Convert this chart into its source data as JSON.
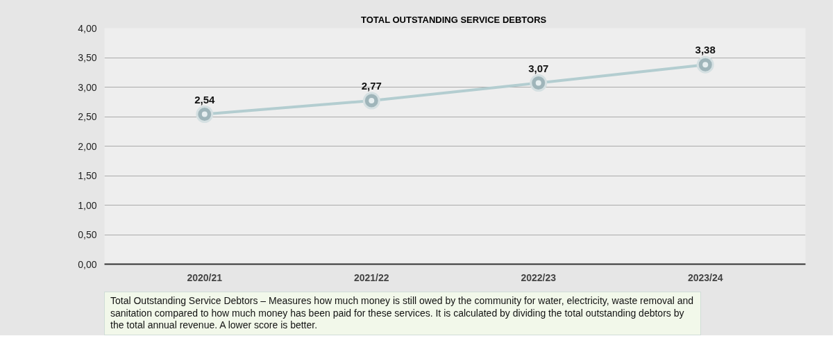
{
  "chart_data": {
    "type": "line",
    "title": "TOTAL OUTSTANDING  SERVICE DEBTORS",
    "categories": [
      "2020/21",
      "2021/22",
      "2022/23",
      "2023/24"
    ],
    "series": [
      {
        "color": "#b3cdd0",
        "values": [
          2.54,
          2.77,
          3.07,
          3.38
        ],
        "value_labels": [
          "2,54",
          "2,77",
          "3,07",
          "3,38"
        ]
      }
    ],
    "ylim": [
      0,
      4
    ],
    "yticks": [
      {
        "value": 0,
        "label": "0,00"
      },
      {
        "value": 0.5,
        "label": "0,50"
      },
      {
        "value": 1,
        "label": "1,00"
      },
      {
        "value": 1.5,
        "label": "1,50"
      },
      {
        "value": 2,
        "label": "2,00"
      },
      {
        "value": 2.5,
        "label": "2,50"
      },
      {
        "value": 3,
        "label": "3,00"
      },
      {
        "value": 3.5,
        "label": "3,50"
      },
      {
        "value": 4,
        "label": "4,00"
      }
    ],
    "grid": "y",
    "marker": "circle",
    "line_style": "solid",
    "annotations": [
      "Total Outstanding Service Debtors – Measures how much money is still owed by the community for water, electricity, waste removal and sanitation compared to how much money has been paid for these services. It is calculated by dividing the total outstanding debtors by the total annual revenue. A lower score is better."
    ]
  }
}
